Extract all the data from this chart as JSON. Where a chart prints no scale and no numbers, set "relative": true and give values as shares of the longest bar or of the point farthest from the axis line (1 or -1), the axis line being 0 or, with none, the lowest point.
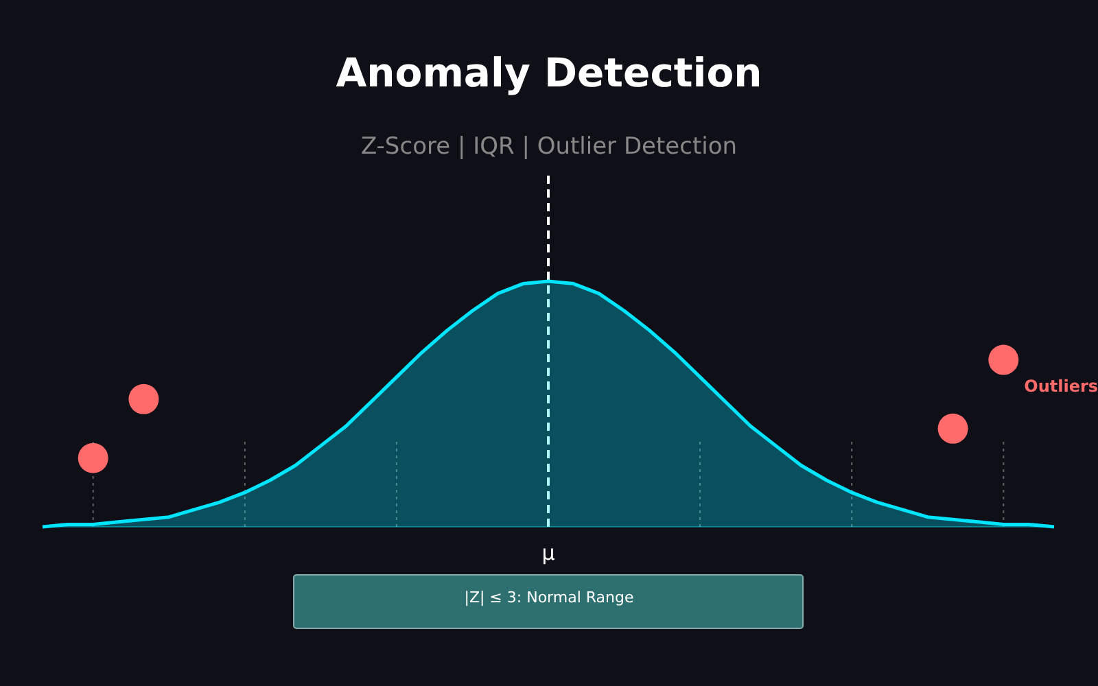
{
  "chart_data": {
    "type": "area",
    "title": "Anomaly Detection",
    "subtitle": "Z-Score | IQR | Outlier Detection",
    "relative": true,
    "grid": false,
    "categories": [
      null,
      null,
      null,
      null,
      null,
      null,
      null,
      null,
      null,
      null,
      null,
      null,
      null,
      null,
      null,
      null,
      null,
      null,
      null,
      null,
      null,
      null,
      null,
      null,
      null,
      null,
      null,
      null,
      null,
      null,
      null,
      null,
      null,
      null,
      null,
      null,
      null,
      null,
      null,
      null,
      null
    ],
    "series": [
      {
        "color": "#00e5ff",
        "values": [
          0,
          0.01,
          0.01,
          0.02,
          0.03,
          0.04,
          0.07,
          0.1,
          0.14,
          0.19,
          0.25,
          0.33,
          0.41,
          0.51,
          0.61,
          0.71,
          0.8,
          0.88,
          0.95,
          0.99,
          1,
          0.99,
          0.95,
          0.88,
          0.8,
          0.71,
          0.61,
          0.51,
          0.41,
          0.33,
          0.25,
          0.19,
          0.14,
          0.1,
          0.07,
          0.04,
          0.03,
          0.02,
          0.01,
          0.01,
          0
        ]
      }
    ],
    "ref_lines": [
      {
        "axis": "x",
        "label": "μ",
        "color": "#ffffff",
        "line_style": "dashed"
      }
    ],
    "annotations": [
      "Outliers",
      "|Z| ≤ 3: Normal Range"
    ]
  }
}
